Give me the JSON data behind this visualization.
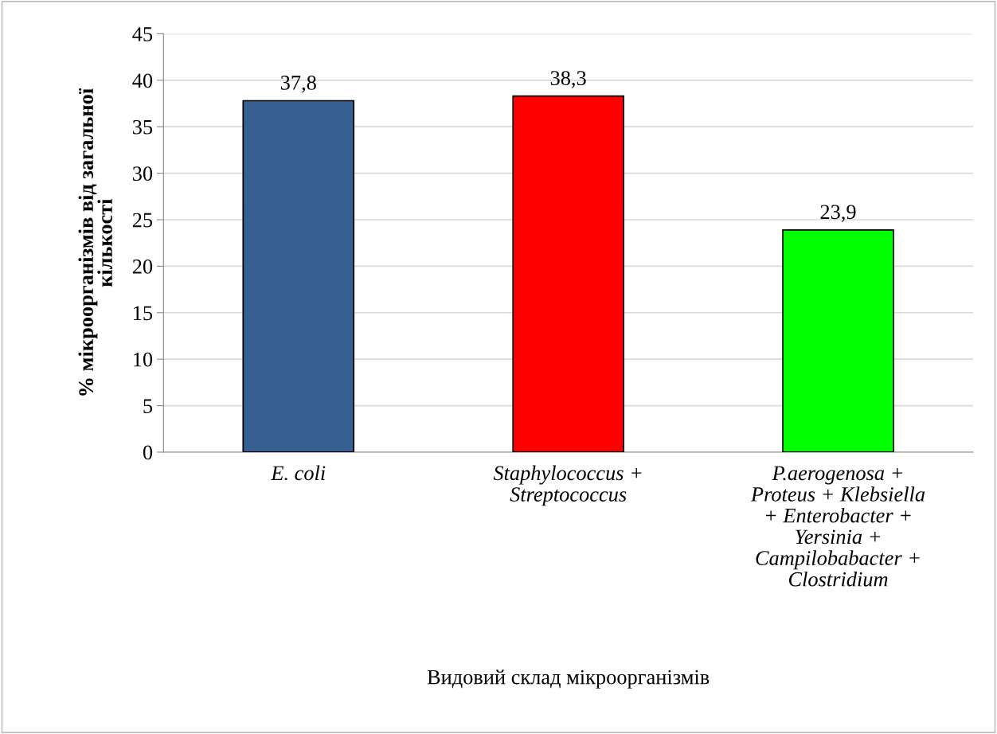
{
  "chart_data": {
    "type": "bar",
    "xlabel": "Видовий склад мікроорганізмів",
    "ylabel": "% мікроорганізмів від загальної\nкількості",
    "categories": [
      "E. coli",
      "Staphylococcus +\nStreptococcus",
      "P.aerogenosa +\nProteus + Klebsiella\n+ Enterobacter +\nYersinia +\nCampilobabacter +\nClostridium"
    ],
    "values": [
      37.8,
      38.3,
      23.9
    ],
    "colors": [
      "#376092",
      "#ff0000",
      "#00ff00"
    ],
    "value_labels": [
      "37,8",
      "38,3",
      "23,9"
    ],
    "ylim": [
      0,
      45
    ],
    "yticks": [
      0,
      5,
      10,
      15,
      20,
      25,
      30,
      35,
      40,
      45
    ],
    "grid": "y",
    "legend": false
  }
}
